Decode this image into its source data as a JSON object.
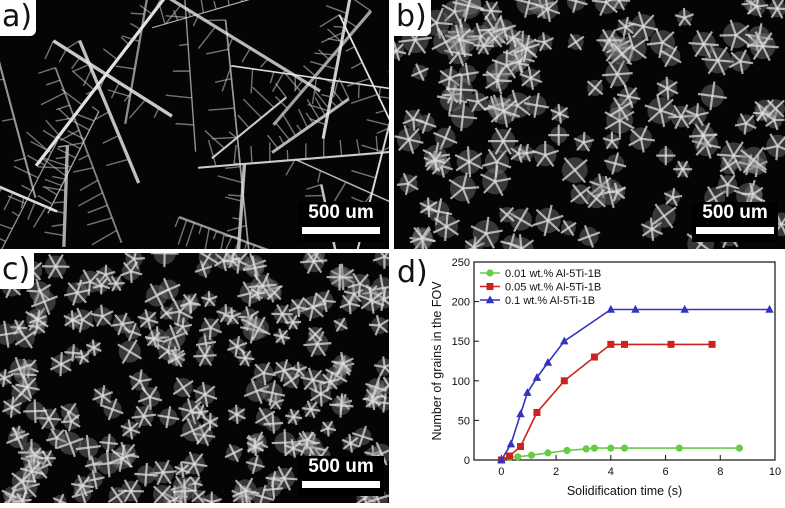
{
  "panels": {
    "a": {
      "label": "a)",
      "scale_bar": "500 um"
    },
    "b": {
      "label": "b)",
      "scale_bar": "500 um"
    },
    "c": {
      "label": "c)",
      "scale_bar": "500 um"
    },
    "d": {
      "label": "d)"
    }
  },
  "chart_data": {
    "type": "line",
    "xlabel": "Solidification time (s)",
    "ylabel": "Number of grains in the FOV",
    "xlim": [
      -1,
      10
    ],
    "ylim": [
      0,
      250
    ],
    "xticks": [
      0,
      2,
      4,
      6,
      8,
      10
    ],
    "yticks": [
      0,
      50,
      100,
      150,
      200,
      250
    ],
    "legend_position": "top-left",
    "series": [
      {
        "name": "0.01 wt.% Al-5Ti-1B",
        "color": "#66cc44",
        "marker": "circle",
        "x": [
          0,
          0.3,
          0.6,
          1.1,
          1.7,
          2.4,
          3.1,
          3.4,
          4.0,
          4.5,
          6.5,
          8.7
        ],
        "y": [
          0,
          3,
          4,
          6,
          9,
          12,
          14,
          15,
          15,
          15,
          15,
          15
        ]
      },
      {
        "name": "0.05 wt.% Al-5Ti-1B",
        "color": "#cc2222",
        "marker": "square",
        "x": [
          0,
          0.3,
          0.7,
          1.3,
          2.3,
          3.4,
          4.0,
          4.5,
          6.2,
          7.7
        ],
        "y": [
          0,
          5,
          17,
          60,
          100,
          130,
          146,
          146,
          146,
          146
        ]
      },
      {
        "name": "0.1 wt.% Al-5Ti-1B",
        "color": "#3333bb",
        "marker": "triangle",
        "x": [
          0,
          0.35,
          0.7,
          0.95,
          1.3,
          1.7,
          2.3,
          4.0,
          4.9,
          6.7,
          9.8
        ],
        "y": [
          0,
          20,
          58,
          85,
          104,
          123,
          150,
          190,
          190,
          190,
          190
        ]
      }
    ]
  }
}
